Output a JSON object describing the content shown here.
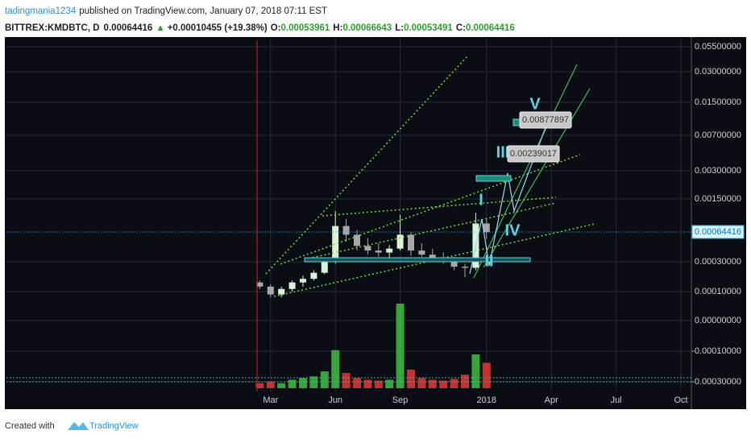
{
  "header": {
    "author": "tadingmania1234",
    "published": "published on TradingView.com, January 07, 2018 07:11 EST",
    "symbol": "BITTREX:KMDBTC, D",
    "price": "0.00064416",
    "change": "+0.00010455 (+19.38%)",
    "ohlc": [
      {
        "label": "O:",
        "value": "0.00053961"
      },
      {
        "label": "H:",
        "value": "0.00066643"
      },
      {
        "label": "L:",
        "value": "0.00053491"
      },
      {
        "label": "C:",
        "value": "0.00064416"
      }
    ]
  },
  "chart_data": {
    "type": "candlestick",
    "log_scale": true,
    "grid": true,
    "up_color": "#d9f2d9",
    "down_color": "#a8a8a8",
    "volume_up_color": "#3fbf3f",
    "volume_down_color": "#e53935",
    "categories": [
      null,
      null,
      "Mar",
      null,
      null,
      null,
      null,
      null,
      "Jun",
      null,
      null,
      null,
      null,
      null,
      "Sep",
      null,
      null,
      null,
      null,
      null,
      null,
      null,
      "2018",
      null,
      null,
      null,
      null,
      null,
      "Apr",
      null,
      null,
      null,
      null,
      null,
      "Jul",
      null,
      null,
      null,
      null,
      null,
      "Oct"
    ],
    "open": [
      null,
      0.00014,
      0.00012,
      9e-05,
      0.00011,
      0.00014,
      0.00016,
      0.0002,
      0.0003,
      0.00075,
      0.0006,
      0.00045,
      0.0004,
      0.00038,
      0.00042,
      0.0006,
      0.0004,
      0.00036,
      0.00033,
      0.00031,
      0.00025,
      0.00024,
      0.0008,
      null,
      null,
      null,
      null,
      null,
      null,
      null,
      null,
      null,
      null,
      null,
      null,
      null,
      null,
      null,
      null,
      null,
      null
    ],
    "high": [
      null,
      0.00015,
      0.00013,
      0.00012,
      0.00015,
      0.00018,
      0.00022,
      0.00032,
      0.0011,
      0.0009,
      0.00068,
      0.00055,
      0.00048,
      0.00046,
      0.001,
      0.00065,
      0.00048,
      0.00042,
      0.00038,
      0.00034,
      0.00028,
      0.00105,
      0.0009,
      null,
      null,
      null,
      null,
      null,
      null,
      null,
      null,
      null,
      null,
      null,
      null,
      null,
      null,
      null,
      null,
      null,
      null
    ],
    "low": [
      null,
      0.00011,
      8e-05,
      8e-05,
      0.0001,
      0.00012,
      0.00015,
      0.00019,
      0.00028,
      0.0005,
      0.0004,
      0.00036,
      0.00034,
      0.00033,
      0.0004,
      0.00035,
      0.00034,
      0.0003,
      0.00028,
      0.00022,
      0.00017,
      0.00022,
      0.00054,
      null,
      null,
      null,
      null,
      null,
      null,
      null,
      null,
      null,
      null,
      null,
      null,
      null,
      null,
      null,
      null,
      null,
      null
    ],
    "close": [
      null,
      0.00012,
      9e-05,
      0.00011,
      0.00014,
      0.00016,
      0.0002,
      0.0003,
      0.00075,
      0.0006,
      0.00045,
      0.0004,
      0.00038,
      0.00042,
      0.0006,
      0.0004,
      0.00036,
      0.00033,
      0.00031,
      0.00025,
      0.00024,
      0.0008,
      0.00064,
      null,
      null,
      null,
      null,
      null,
      null,
      null,
      null,
      null,
      null,
      null,
      null,
      null,
      null,
      null,
      null,
      null,
      null
    ],
    "volume": [
      null,
      6,
      8,
      6,
      10,
      12,
      14,
      20,
      45,
      18,
      12,
      10,
      9,
      10,
      100,
      22,
      12,
      10,
      9,
      11,
      16,
      40,
      30,
      null,
      null,
      null,
      null,
      null,
      null,
      null,
      null,
      null,
      null,
      null,
      null,
      null,
      null,
      null,
      null,
      null,
      null
    ],
    "yticks": [
      {
        "value": 0.055,
        "label": "0.05500000"
      },
      {
        "value": 0.03,
        "label": "0.03000000"
      },
      {
        "value": 0.015,
        "label": "0.01500000"
      },
      {
        "value": 0.007,
        "label": "0.00700000"
      },
      {
        "value": 0.003,
        "label": "0.00300000"
      },
      {
        "value": 0.0015,
        "label": "0.00150000"
      },
      {
        "value": 0.0003,
        "label": "0.00030000"
      },
      {
        "value": 0.0001,
        "label": "0.00010000"
      },
      {
        "value": 0,
        "label": "0.00000000"
      },
      {
        "value": -0.0001,
        "label": "-0.00010000"
      },
      {
        "value": -0.0003,
        "label": "-0.00030000"
      }
    ],
    "last_price": 0.00064416,
    "annotations": [
      "V",
      "III",
      "I",
      "IV",
      "II",
      "0.00877897",
      "0.00239017"
    ]
  },
  "footer": {
    "created": "Created with",
    "brand": "TradingView"
  }
}
